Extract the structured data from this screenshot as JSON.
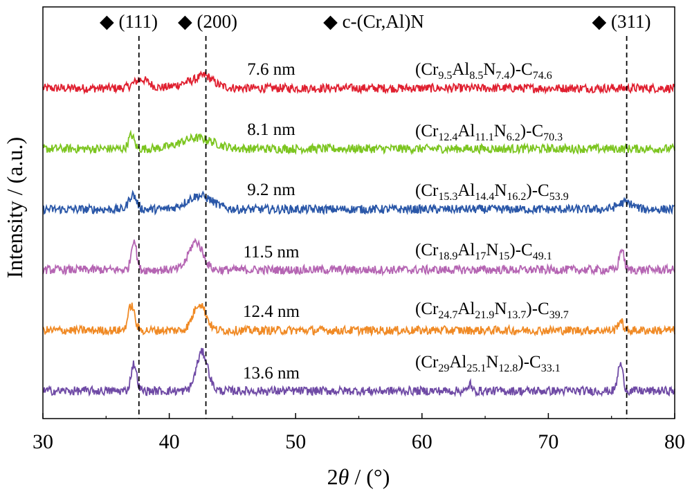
{
  "chart_data": {
    "type": "line",
    "xlabel_parts": [
      "2",
      "θ",
      " / (°)"
    ],
    "ylabel": "Intensity / (a.u.)",
    "xlim": [
      30,
      80
    ],
    "x_ticks": [
      "30",
      "40",
      "50",
      "60",
      "70",
      "80"
    ],
    "y_ticks": [],
    "grid": false,
    "peak_markers": [
      {
        "label": "◆ (111)",
        "x": 37.6
      },
      {
        "label": "◆ (200)",
        "x": 42.9
      },
      {
        "label": "◆ c-(Cr,Al)N",
        "x": null
      },
      {
        "label": "◆ (311)",
        "x": 76.2
      }
    ],
    "series": [
      {
        "size_label": "7.6 nm",
        "composition": [
          [
            "(Cr",
            ""
          ],
          [
            "9.5",
            "sub"
          ],
          [
            "Al",
            ""
          ],
          [
            "8.5",
            "sub"
          ],
          [
            "N",
            ""
          ],
          [
            "7.4",
            "sub"
          ],
          [
            ")-C",
            ""
          ],
          [
            "74.6",
            "sub"
          ]
        ],
        "color": "#e02030",
        "offset": 5,
        "peaks": [
          [
            37.8,
            0.6,
            0.45
          ],
          [
            42.2,
            1.2,
            0.4
          ],
          [
            42.9,
            0.5,
            0.3
          ]
        ]
      },
      {
        "size_label": "8.1 nm",
        "composition": [
          [
            "(Cr",
            ""
          ],
          [
            "12.4",
            "sub"
          ],
          [
            "Al",
            ""
          ],
          [
            "11.1",
            "sub"
          ],
          [
            "N",
            ""
          ],
          [
            "6.2",
            "sub"
          ],
          [
            ")-C",
            ""
          ],
          [
            "70.3",
            "sub"
          ]
        ],
        "color": "#7cc520",
        "offset": 4,
        "peaks": [
          [
            37.0,
            0.22,
            0.7
          ],
          [
            42.2,
            1.3,
            0.55
          ]
        ]
      },
      {
        "size_label": "9.2 nm",
        "composition": [
          [
            "(Cr",
            ""
          ],
          [
            "15.3",
            "sub"
          ],
          [
            "Al",
            ""
          ],
          [
            "14.4",
            "sub"
          ],
          [
            "N",
            ""
          ],
          [
            "16.2",
            "sub"
          ],
          [
            ")-C",
            ""
          ],
          [
            "53.9",
            "sub"
          ]
        ],
        "color": "#2a57a8",
        "offset": 3,
        "peaks": [
          [
            37.1,
            0.3,
            0.75
          ],
          [
            42.4,
            1.0,
            0.7
          ],
          [
            76.1,
            0.6,
            0.35
          ]
        ]
      },
      {
        "size_label": "11.5 nm",
        "composition": [
          [
            "(Cr",
            ""
          ],
          [
            "18.9",
            "sub"
          ],
          [
            "Al",
            ""
          ],
          [
            "17",
            "sub"
          ],
          [
            "N",
            ""
          ],
          [
            "15",
            "sub"
          ],
          [
            ")-C",
            ""
          ],
          [
            "49.1",
            "sub"
          ]
        ],
        "color": "#b565b3",
        "offset": 2,
        "peaks": [
          [
            37.2,
            0.2,
            1.6
          ],
          [
            42.1,
            0.55,
            1.45
          ],
          [
            75.8,
            0.18,
            1.1
          ]
        ]
      },
      {
        "size_label": "12.4 nm",
        "composition": [
          [
            "(Cr",
            ""
          ],
          [
            "24.7",
            "sub"
          ],
          [
            "Al",
            ""
          ],
          [
            "21.9",
            "sub"
          ],
          [
            "N",
            ""
          ],
          [
            "13.7",
            "sub"
          ],
          [
            ")-C",
            ""
          ],
          [
            "39.7",
            "sub"
          ]
        ],
        "color": "#f08a25",
        "offset": 1,
        "peaks": [
          [
            37.0,
            0.25,
            1.3
          ],
          [
            42.4,
            0.5,
            1.4
          ],
          [
            75.7,
            0.2,
            0.5
          ]
        ]
      },
      {
        "size_label": "13.6 nm",
        "composition": [
          [
            "(Cr",
            ""
          ],
          [
            "29",
            "sub"
          ],
          [
            "Al",
            ""
          ],
          [
            "25.1",
            "sub"
          ],
          [
            "N",
            ""
          ],
          [
            "12.8",
            "sub"
          ],
          [
            ")-C",
            ""
          ],
          [
            "33.1",
            "sub"
          ]
        ],
        "color": "#6f4aa5",
        "offset": 0,
        "peaks": [
          [
            37.2,
            0.22,
            1.4
          ],
          [
            42.6,
            0.45,
            2.0
          ],
          [
            63.8,
            0.08,
            0.5
          ],
          [
            75.7,
            0.2,
            1.4
          ]
        ]
      }
    ]
  }
}
